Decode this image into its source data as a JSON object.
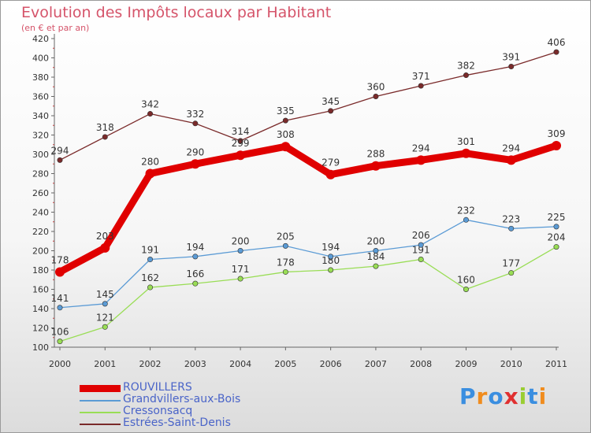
{
  "chart_data": {
    "type": "line",
    "title": "Evolution des Impôts locaux par Habitant",
    "subtitle": "(en € et par an)",
    "x": [
      "2000",
      "2001",
      "2002",
      "2003",
      "2004",
      "2005",
      "2006",
      "2007",
      "2008",
      "2009",
      "2010",
      "2011"
    ],
    "ylim": [
      100,
      420
    ],
    "yticks": [
      100,
      120,
      140,
      160,
      180,
      200,
      220,
      240,
      260,
      280,
      300,
      320,
      340,
      360,
      380,
      400,
      420
    ],
    "grid": false,
    "legend_position": "bottom-left",
    "series": [
      {
        "name": "ROUVILLERS",
        "color": "#e00000",
        "values": [
          178,
          203,
          280,
          290,
          299,
          308,
          279,
          288,
          294,
          301,
          294,
          309
        ]
      },
      {
        "name": "Grandvillers-aux-Bois",
        "color": "#5b9bd5",
        "values": [
          141,
          145,
          191,
          194,
          200,
          205,
          194,
          200,
          206,
          232,
          223,
          225
        ]
      },
      {
        "name": "Cressonsacq",
        "color": "#99dd55",
        "values": [
          106,
          121,
          162,
          166,
          171,
          178,
          180,
          184,
          191,
          160,
          177,
          204
        ]
      },
      {
        "name": "Estrées-Saint-Denis",
        "color": "#7a2a2a",
        "values": [
          294,
          318,
          342,
          332,
          314,
          335,
          345,
          360,
          371,
          382,
          391,
          406
        ]
      }
    ]
  },
  "brand": {
    "letters": [
      "P",
      "r",
      "o",
      "x",
      "i",
      "t",
      "i"
    ],
    "colors": [
      "#3a8ee0",
      "#f08c1e",
      "#3a8ee0",
      "#e03030",
      "#9acd32",
      "#3a8ee0",
      "#f08c1e"
    ]
  }
}
